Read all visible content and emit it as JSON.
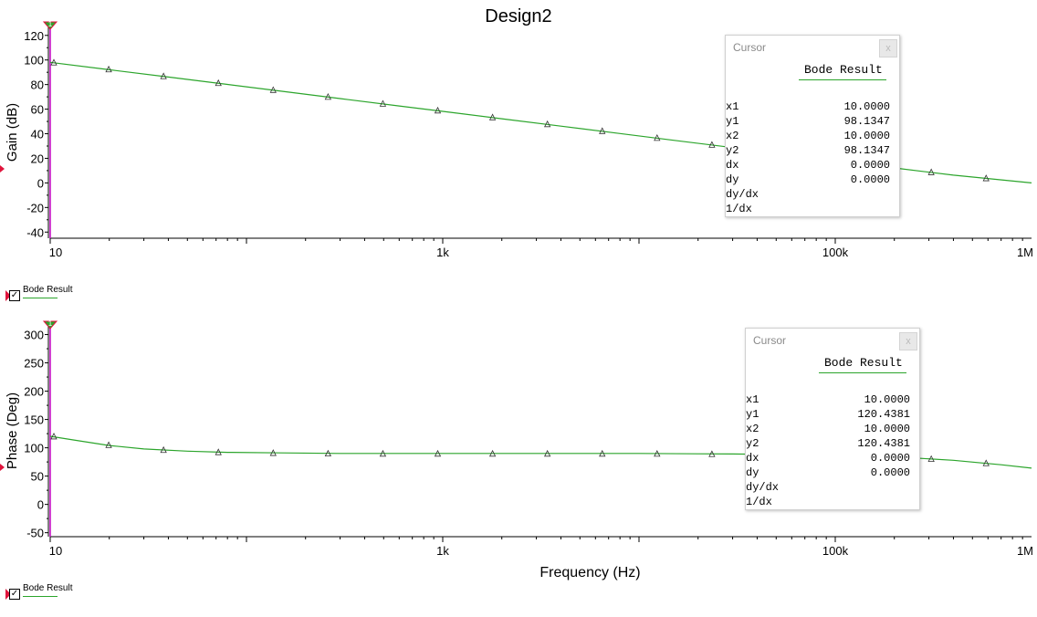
{
  "title": "Design2",
  "colors": {
    "trace": "#2ca52c",
    "cursor": "#c000c0",
    "marker": "#e0143c"
  },
  "chart_data": [
    {
      "type": "line",
      "name": "gain",
      "x_scale": "log",
      "xlim": [
        10,
        1000000
      ],
      "ylim": [
        -45,
        128
      ],
      "ylabel": "Gain (dB)",
      "xlabel": "",
      "xticks": [
        10,
        1000,
        100000,
        1000000
      ],
      "xtick_labels": [
        "10",
        "1k",
        "100k",
        "1M"
      ],
      "yticks": [
        120,
        100,
        80,
        60,
        40,
        20,
        0,
        -20,
        -40
      ],
      "grid": false,
      "series": [
        {
          "name": "Bode Result",
          "x": [
            10,
            20,
            40,
            80,
            150,
            300,
            600,
            1000,
            2000,
            4000,
            8000,
            15000,
            30000,
            60000,
            100000,
            200000,
            400000,
            1000000
          ],
          "y": [
            98.1,
            92.1,
            86.1,
            80.1,
            74.6,
            68.6,
            62.6,
            58.2,
            52.2,
            46.2,
            40.2,
            34.7,
            28.7,
            22.7,
            18.2,
            12.2,
            6.3,
            0.0
          ]
        }
      ]
    },
    {
      "type": "line",
      "name": "phase",
      "x_scale": "log",
      "xlim": [
        10,
        1000000
      ],
      "ylim": [
        -57,
        317
      ],
      "ylabel": "Phase (Deg)",
      "xlabel": "Frequency (Hz)",
      "xticks": [
        10,
        1000,
        100000,
        1000000
      ],
      "xtick_labels": [
        "10",
        "1k",
        "100k",
        "1M"
      ],
      "yticks": [
        300,
        250,
        200,
        150,
        100,
        50,
        0,
        -50
      ],
      "grid": false,
      "series": [
        {
          "name": "Bode Result",
          "x": [
            10,
            13,
            20,
            30,
            50,
            80,
            150,
            300,
            1000,
            3000,
            10000,
            30000,
            100000,
            200000,
            400000,
            700000,
            1000000
          ],
          "y": [
            120.4,
            114,
            104,
            98,
            94,
            92,
            91,
            90,
            90,
            90,
            90,
            89,
            87,
            84,
            78,
            70,
            64
          ]
        }
      ]
    }
  ],
  "cursor_gain": {
    "title": "Cursor",
    "series": "Bode Result",
    "rows": [
      {
        "label": "x1",
        "value": "10.0000"
      },
      {
        "label": "y1",
        "value": "98.1347"
      },
      {
        "label": "x2",
        "value": "10.0000"
      },
      {
        "label": "y2",
        "value": "98.1347"
      },
      {
        "label": "dx",
        "value": "0.0000"
      },
      {
        "label": "dy",
        "value": "0.0000"
      },
      {
        "label": "dy/dx",
        "value": ""
      },
      {
        "label": "1/dx",
        "value": ""
      }
    ]
  },
  "cursor_phase": {
    "title": "Cursor",
    "series": "Bode Result",
    "rows": [
      {
        "label": "x1",
        "value": "10.0000"
      },
      {
        "label": "y1",
        "value": "120.4381"
      },
      {
        "label": "x2",
        "value": "10.0000"
      },
      {
        "label": "y2",
        "value": "120.4381"
      },
      {
        "label": "dx",
        "value": "0.0000"
      },
      {
        "label": "dy",
        "value": "0.0000"
      },
      {
        "label": "dy/dx",
        "value": ""
      },
      {
        "label": "1/dx",
        "value": ""
      }
    ]
  },
  "legend_gain": {
    "label": "Bode Result",
    "checked": true
  },
  "legend_phase": {
    "label": "Bode Result",
    "checked": true
  },
  "cursor_markers": {
    "label": "1"
  }
}
